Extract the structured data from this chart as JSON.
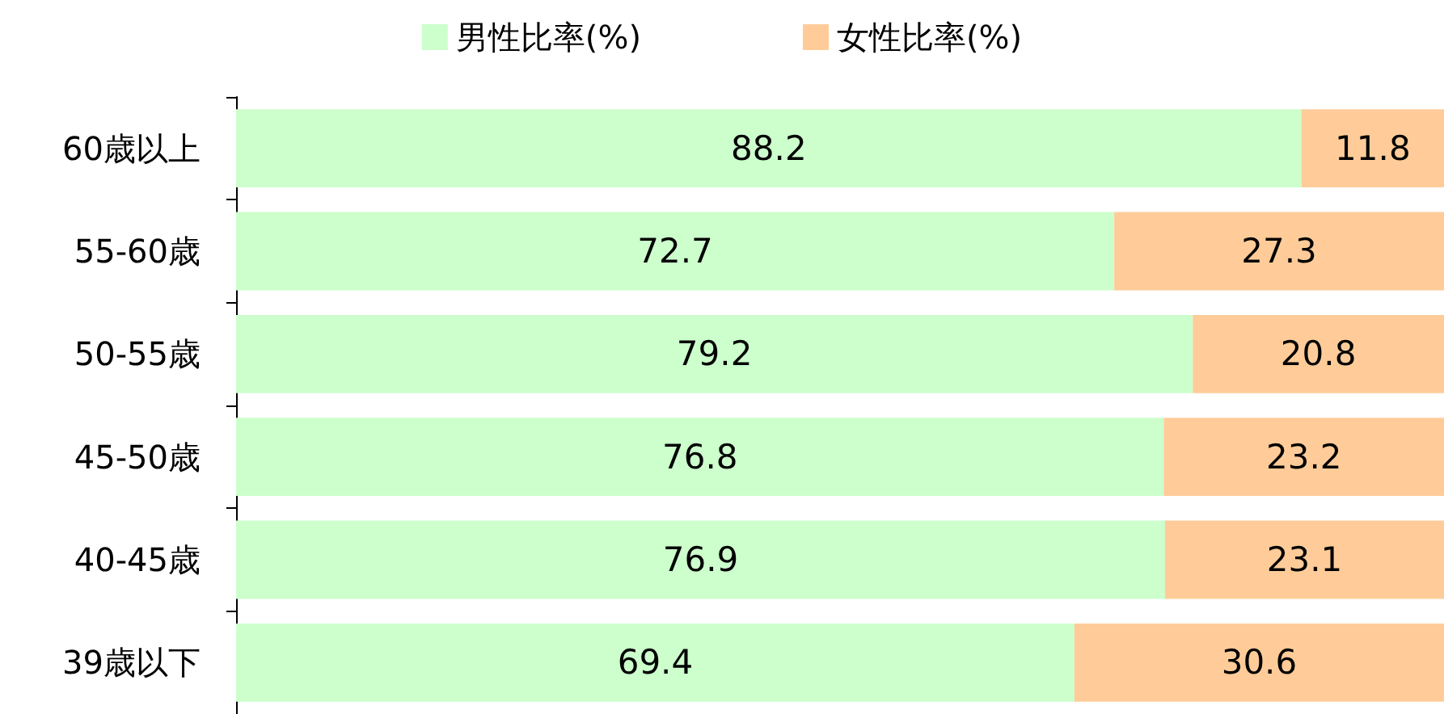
{
  "chart_data": {
    "type": "bar",
    "orientation": "horizontal",
    "stacked": true,
    "categories": [
      "60歳以上",
      "55-60歳",
      "50-55歳",
      "45-50歳",
      "40-45歳",
      "39歳以下"
    ],
    "series": [
      {
        "name": "男性比率(%)",
        "color": "#ccffcc",
        "values": [
          88.2,
          72.7,
          79.2,
          76.8,
          76.9,
          69.4
        ]
      },
      {
        "name": "女性比率(%)",
        "color": "#ffcc99",
        "values": [
          11.8,
          27.3,
          20.8,
          23.2,
          23.1,
          30.6
        ]
      }
    ],
    "xlim": [
      0,
      100
    ],
    "data_labels": true,
    "legend": "top",
    "grid": false,
    "tick_labels": "y"
  }
}
